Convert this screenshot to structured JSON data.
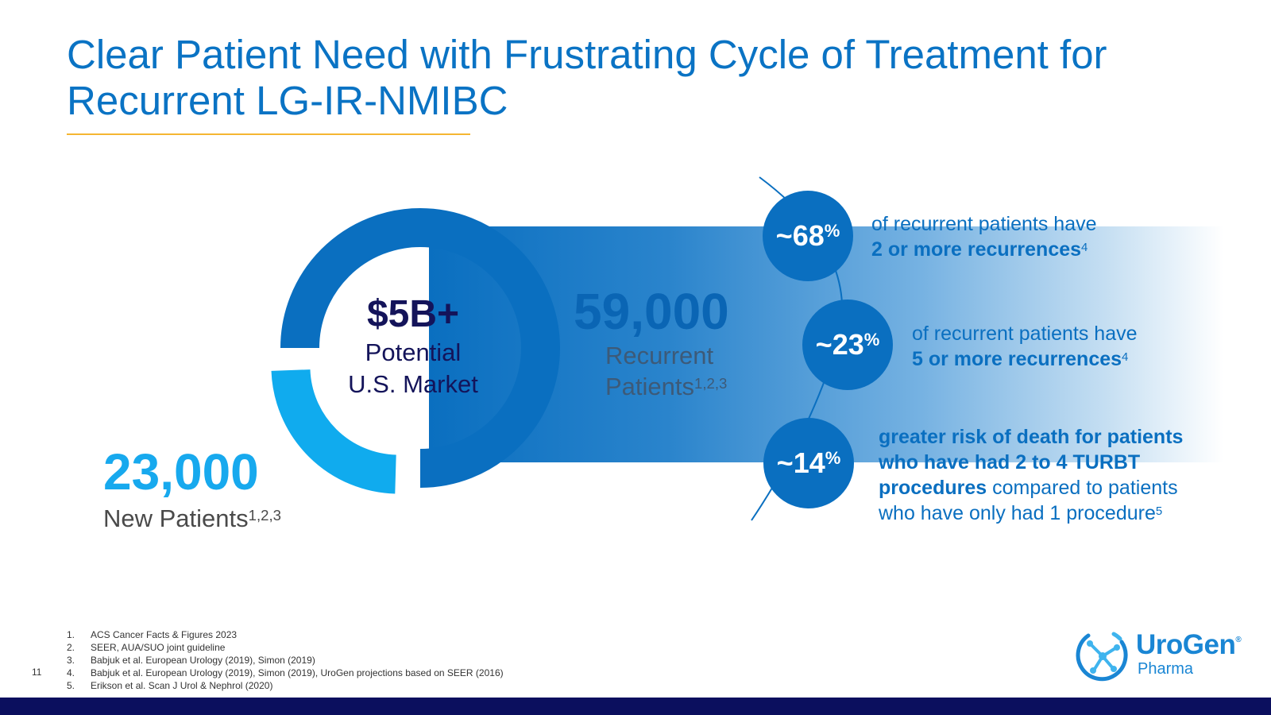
{
  "title": {
    "line1": "Clear Patient Need with Frustrating Cycle of Treatment for",
    "line2": "Recurrent LG-IR-NMIBC"
  },
  "market": {
    "value": "$5B+",
    "label_line1": "Potential",
    "label_line2": "U.S. Market"
  },
  "new_patients": {
    "count": "23,000",
    "label": "New Patients",
    "refs": "1,2,3"
  },
  "recurrent_patients": {
    "count": "59,000",
    "label_line1": "Recurrent",
    "label_line2": "Patients",
    "refs": "1,2,3"
  },
  "stats": [
    {
      "value": "~68",
      "unit": "%",
      "text_normal": "of recurrent patients have",
      "text_bold": "2 or more recurrences",
      "ref": "4"
    },
    {
      "value": "~23",
      "unit": "%",
      "text_normal": "of recurrent patients have",
      "text_bold": "5 or more recurrences",
      "ref": "4"
    },
    {
      "value": "~14",
      "unit": "%",
      "text_bold": "greater risk of death for patients who have had 2 to 4 TURBT procedures",
      "text_normal": " compared to patients who have only had 1 procedure",
      "ref": "5"
    }
  ],
  "footnotes": [
    {
      "num": "1.",
      "text": "ACS Cancer Facts & Figures 2023"
    },
    {
      "num": "2.",
      "text": "SEER, AUA/SUO joint guideline"
    },
    {
      "num": "3.",
      "text": "Babjuk et al. European Urology (2019), Simon (2019)"
    },
    {
      "num": "4.",
      "text": "Babjuk et al. European Urology (2019), Simon (2019), UroGen projections based on SEER (2016)"
    },
    {
      "num": "5.",
      "text": "Erikson et al. Scan J Urol & Nephrol (2020)"
    }
  ],
  "page_number": "11",
  "logo": {
    "name": "UroGen",
    "trademark": "®",
    "sub": "Pharma"
  },
  "colors": {
    "primary_blue": "#0a6fc0",
    "light_blue": "#17a9ee",
    "navy": "#0b0f5e",
    "accent_yellow": "#f5b632"
  }
}
